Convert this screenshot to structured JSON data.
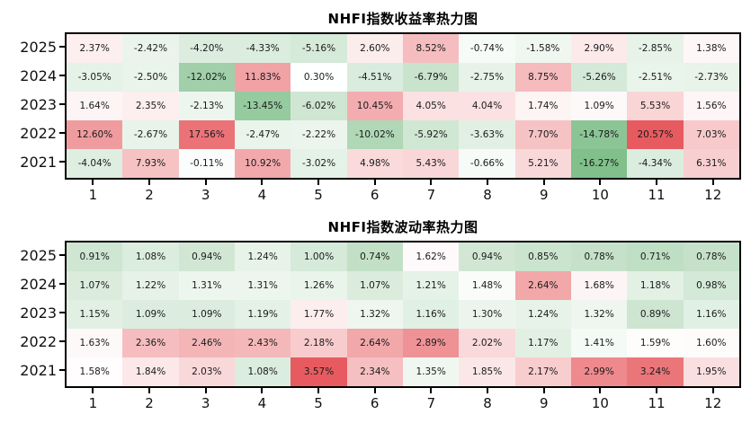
{
  "colors": {
    "background": "#ffffff",
    "plot_border": "#000000",
    "cell_text": "#1a1a1a",
    "axis_text": "#111111",
    "heat_positive_end": "#e75b60",
    "heat_negative_end": "#66b172",
    "heat_mid": "#ffffff"
  },
  "chart_data": [
    {
      "type": "heatmap",
      "title": "NHFI指数收益率热力图",
      "rows": [
        "2025",
        "2024",
        "2023",
        "2022",
        "2021"
      ],
      "cols": [
        "1",
        "2",
        "3",
        "4",
        "5",
        "6",
        "7",
        "8",
        "9",
        "10",
        "11",
        "12"
      ],
      "unit": "%",
      "values": [
        [
          2.37,
          -2.42,
          -4.2,
          -4.33,
          -5.16,
          2.6,
          8.52,
          -0.74,
          -1.58,
          2.9,
          -2.85,
          1.38
        ],
        [
          -3.05,
          -2.5,
          -12.02,
          11.83,
          0.3,
          -4.51,
          -6.79,
          -2.75,
          8.75,
          -5.26,
          -2.51,
          -2.73
        ],
        [
          1.64,
          2.35,
          -2.13,
          -13.45,
          -6.02,
          10.45,
          4.05,
          4.04,
          1.74,
          1.09,
          5.53,
          1.56
        ],
        [
          12.6,
          -2.67,
          17.56,
          -2.47,
          -2.22,
          -10.02,
          -5.92,
          -3.63,
          7.7,
          -14.78,
          20.57,
          7.03
        ],
        [
          -4.04,
          7.93,
          -0.11,
          10.92,
          -3.02,
          4.98,
          5.43,
          -0.66,
          5.21,
          -16.27,
          -4.34,
          6.31
        ]
      ],
      "value_range": [
        -16.27,
        20.57
      ],
      "color_scale": {
        "negative_end": "#66b172",
        "mid": "#ffffff",
        "positive_end": "#e75b60",
        "centered_on": "mean"
      },
      "grid": false,
      "legend": "none"
    },
    {
      "type": "heatmap",
      "title": "NHFI指数波动率热力图",
      "rows": [
        "2025",
        "2024",
        "2023",
        "2022",
        "2021"
      ],
      "cols": [
        "1",
        "2",
        "3",
        "4",
        "5",
        "6",
        "7",
        "8",
        "9",
        "10",
        "11",
        "12"
      ],
      "unit": "%",
      "values": [
        [
          0.91,
          1.08,
          0.94,
          1.24,
          1.0,
          0.74,
          1.62,
          0.94,
          0.85,
          0.78,
          0.71,
          0.78
        ],
        [
          1.07,
          1.22,
          1.31,
          1.31,
          1.26,
          1.07,
          1.21,
          1.48,
          2.64,
          1.68,
          1.18,
          0.98
        ],
        [
          1.15,
          1.09,
          1.09,
          1.19,
          1.77,
          1.32,
          1.16,
          1.3,
          1.24,
          1.32,
          0.89,
          1.16
        ],
        [
          1.63,
          2.36,
          2.46,
          2.43,
          2.18,
          2.64,
          2.89,
          2.02,
          1.17,
          1.41,
          1.59,
          1.6
        ],
        [
          1.58,
          1.84,
          2.03,
          1.08,
          3.57,
          2.34,
          1.35,
          1.85,
          2.17,
          2.99,
          3.24,
          1.95
        ]
      ],
      "value_range": [
        0.71,
        3.57
      ],
      "color_scale": {
        "negative_end": "#66b172",
        "mid": "#ffffff",
        "positive_end": "#e75b60",
        "centered_on": "mean"
      },
      "grid": false,
      "legend": "none"
    }
  ]
}
